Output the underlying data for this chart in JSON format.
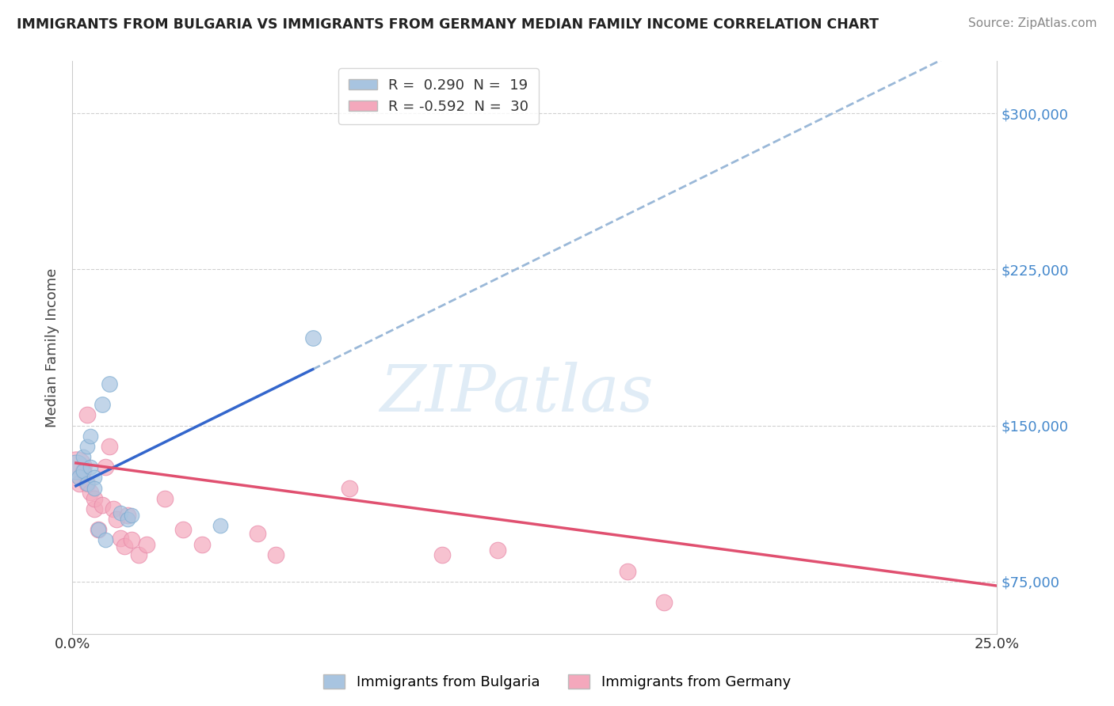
{
  "title": "IMMIGRANTS FROM BULGARIA VS IMMIGRANTS FROM GERMANY MEDIAN FAMILY INCOME CORRELATION CHART",
  "source": "Source: ZipAtlas.com",
  "ylabel": "Median Family Income",
  "xlim": [
    0.0,
    0.25
  ],
  "ylim": [
    50000,
    325000
  ],
  "yticks": [
    75000,
    150000,
    225000,
    300000
  ],
  "ytick_labels": [
    "$75,000",
    "$150,000",
    "$225,000",
    "$300,000"
  ],
  "xticks": [
    0.0,
    0.05,
    0.1,
    0.15,
    0.2,
    0.25
  ],
  "xtick_labels": [
    "0.0%",
    "",
    "",
    "",
    "",
    "25.0%"
  ],
  "bulgaria_color": "#a8c4e0",
  "bulgaria_edge_color": "#7aaad0",
  "germany_color": "#f4a8bc",
  "germany_edge_color": "#e888a8",
  "bulgaria_line_color": "#3366cc",
  "bulgaria_line_color_solid": "#3366cc",
  "germany_line_color": "#e05070",
  "watermark_text": "ZIPatlas",
  "watermark_color": "#cce0f0",
  "bg_color": "#ffffff",
  "grid_color": "#d0d0d0",
  "right_tick_color": "#4488cc",
  "bulgaria_line": {
    "x0": 0.001,
    "y0": 121000,
    "x1": 0.065,
    "y1": 177000
  },
  "germany_line": {
    "x0": 0.001,
    "y0": 132000,
    "x1": 0.25,
    "y1": 73000
  },
  "bulgaria_points": [
    [
      0.001,
      130000,
      500
    ],
    [
      0.002,
      125000,
      200
    ],
    [
      0.003,
      128000,
      180
    ],
    [
      0.003,
      135000,
      180
    ],
    [
      0.004,
      122000,
      180
    ],
    [
      0.004,
      140000,
      180
    ],
    [
      0.005,
      145000,
      180
    ],
    [
      0.005,
      130000,
      180
    ],
    [
      0.006,
      125000,
      180
    ],
    [
      0.006,
      120000,
      180
    ],
    [
      0.007,
      100000,
      180
    ],
    [
      0.008,
      160000,
      200
    ],
    [
      0.009,
      95000,
      180
    ],
    [
      0.01,
      170000,
      200
    ],
    [
      0.013,
      108000,
      180
    ],
    [
      0.015,
      105000,
      180
    ],
    [
      0.016,
      107000,
      180
    ],
    [
      0.04,
      102000,
      180
    ],
    [
      0.065,
      192000,
      200
    ]
  ],
  "germany_points": [
    [
      0.001,
      130000,
      800
    ],
    [
      0.002,
      122000,
      220
    ],
    [
      0.003,
      128000,
      220
    ],
    [
      0.004,
      155000,
      220
    ],
    [
      0.004,
      122000,
      220
    ],
    [
      0.005,
      118000,
      220
    ],
    [
      0.006,
      110000,
      220
    ],
    [
      0.006,
      115000,
      220
    ],
    [
      0.007,
      100000,
      220
    ],
    [
      0.008,
      112000,
      220
    ],
    [
      0.009,
      130000,
      220
    ],
    [
      0.01,
      140000,
      220
    ],
    [
      0.011,
      110000,
      220
    ],
    [
      0.012,
      105000,
      220
    ],
    [
      0.013,
      96000,
      220
    ],
    [
      0.014,
      92000,
      220
    ],
    [
      0.015,
      107000,
      220
    ],
    [
      0.016,
      95000,
      220
    ],
    [
      0.018,
      88000,
      220
    ],
    [
      0.02,
      93000,
      220
    ],
    [
      0.025,
      115000,
      220
    ],
    [
      0.03,
      100000,
      220
    ],
    [
      0.035,
      93000,
      220
    ],
    [
      0.05,
      98000,
      220
    ],
    [
      0.055,
      88000,
      220
    ],
    [
      0.075,
      120000,
      220
    ],
    [
      0.1,
      88000,
      220
    ],
    [
      0.115,
      90000,
      220
    ],
    [
      0.15,
      80000,
      220
    ],
    [
      0.16,
      65000,
      220
    ]
  ]
}
